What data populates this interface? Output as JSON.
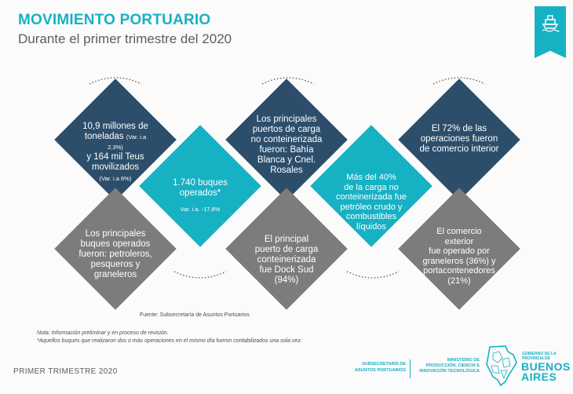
{
  "header": {
    "title": "MOVIMIENTO PORTUARIO",
    "subtitle": "Durante el primer trimestre del 2020",
    "logo_icon": "ship-icon"
  },
  "diamonds": {
    "d1": {
      "line1": "10,9  millones de",
      "line2": "toneladas",
      "var1": "(Var. i.a 2,3%)",
      "line3": "y 164 mil  Teus",
      "line4": "movilizados",
      "var2": "(Var. i.a 6%)"
    },
    "d2": {
      "line1": "1.740 buques",
      "line2": "operados*",
      "var": "Var. i.a. -17,8%"
    },
    "d3": {
      "line1": "Los principales",
      "line2": "puertos de carga",
      "line3": "no conteinerizada",
      "line4": "fueron: Bahía",
      "line5": "Blanca y Cnel.",
      "line6": "Rosales"
    },
    "d4": {
      "line1": "Más del 40%",
      "line2": "de la carga no",
      "line3": "conteinerizada   fue",
      "line4": "petróleo crudo y",
      "line5": "combustibles",
      "line6": "líquidos"
    },
    "d5": {
      "line1": "El 72%  de las",
      "line2": "operaciones fueron",
      "line3": "de comercio interior"
    },
    "d6": {
      "line1": "Los principales",
      "line2": "buques   operados",
      "line3": "fueron: petroleros,",
      "line4": "pesqueros y",
      "line5": "graneleros"
    },
    "d7": {
      "line1": "El principal",
      "line2": "puerto de carga",
      "line3": "conteinerizada",
      "line4": "fue Dock Sud",
      "line5": "(94%)"
    },
    "d8": {
      "line1": "El comercio",
      "line2": "exterior",
      "line3": "fue operado por",
      "line4": "graneleros (36%)    y",
      "line5": "portacontenedores",
      "line6": "(21%)"
    }
  },
  "source": "Fuente: Subsecretaría de Asuntos Portuarios",
  "notes": {
    "note1": "Nota: Información preliminar y en proceso de revisión.",
    "note2": "*Aquellos buques que realizaron dos  o más operaciones  en el mismo día fueron contabilizados una sola vez."
  },
  "footer": {
    "period": "PRIMER TRIMESTRE 2020",
    "subsecretaria": [
      "SUBSECRETARÍA DE",
      "ASUNTOS PORTUARIOS"
    ],
    "ministerio": [
      "MINISTERIO DE",
      "PRODUCCIÓN, CIENCIA E",
      "INNOVACIÓN TECNOLÓGICA"
    ],
    "gobierno": [
      "GOBIERNO DE LA",
      "PROVINCIA DE"
    ],
    "buenos_aires": [
      "BUENOS",
      "AIRES"
    ]
  },
  "colors": {
    "teal": "#17b1c4",
    "navy": "#2c4e6b",
    "gray": "#7c7c7c",
    "text_gray": "#5a5d62"
  }
}
